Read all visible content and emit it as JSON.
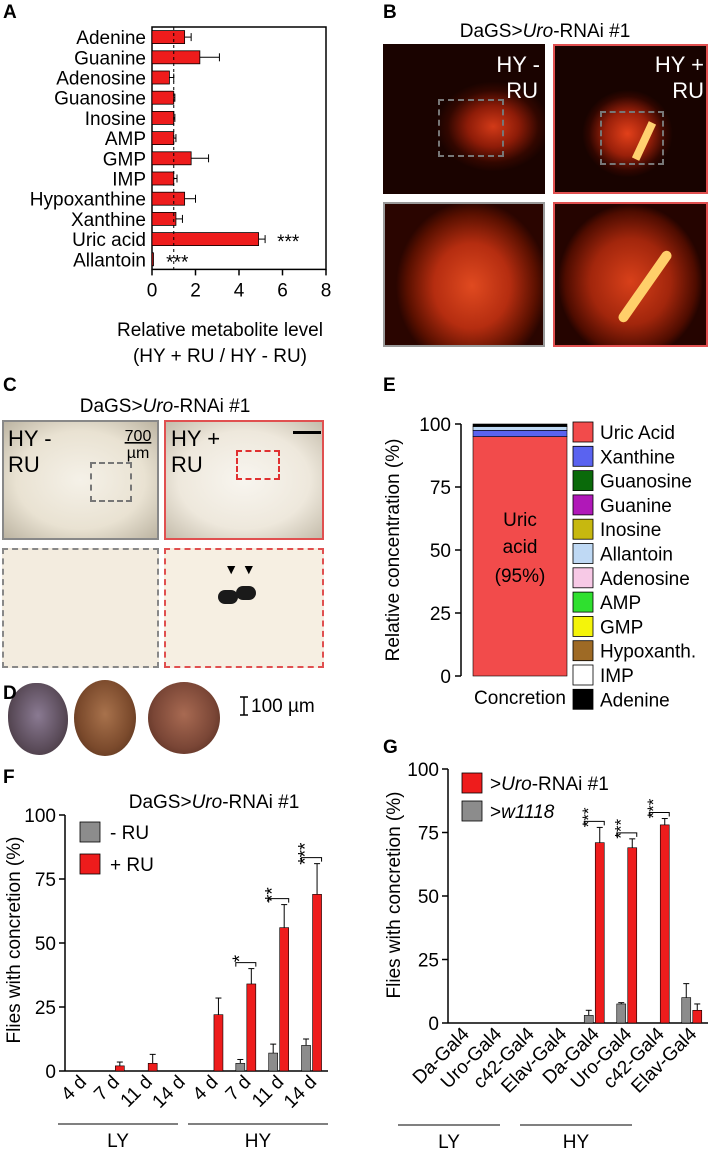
{
  "panel_letters": [
    "A",
    "B",
    "C",
    "D",
    "E",
    "F",
    "G"
  ],
  "panel_b": {
    "title_prefix": "DaGS>",
    "title_gene": "Uro",
    "title_suffix": "-RNAi #1",
    "left_label_line1": "HY -",
    "left_label_line2": "RU",
    "right_label_line1": "HY +",
    "right_label_line2": "RU"
  },
  "panel_c": {
    "title_prefix": "DaGS>",
    "title_gene": "Uro",
    "title_suffix": "-RNAi #1",
    "left_label_line1": "HY -",
    "left_label_line2": "RU",
    "right_label_line1": "HY +",
    "right_label_line2": "RU",
    "scale_line1": "700",
    "scale_line2": "µm",
    "arrows": "▼ ▼"
  },
  "panel_d": {
    "scale_label": "100 µm"
  },
  "chart_data": [
    {
      "panel": "A",
      "type": "bar",
      "orientation": "horizontal",
      "categories": [
        "Adenine",
        "Guanine",
        "Adenosine",
        "Guanosine",
        "Inosine",
        "AMP",
        "GMP",
        "IMP",
        "Hypoxanthine",
        "Xanthine",
        "Uric acid",
        "Allantoin"
      ],
      "values": [
        1.5,
        2.2,
        0.8,
        1.0,
        1.0,
        1.0,
        1.8,
        1.0,
        1.5,
        1.1,
        4.9,
        0.05
      ],
      "errors": [
        0.3,
        0.9,
        0.2,
        0.05,
        0.05,
        0.1,
        0.8,
        0.15,
        0.5,
        0.3,
        0.3,
        0.02
      ],
      "significance": [
        "",
        "",
        "",
        "",
        "",
        "",
        "",
        "",
        "",
        "",
        "***",
        "***"
      ],
      "xlim": [
        0,
        8
      ],
      "xticks": [
        "0",
        "2",
        "4",
        "6",
        "8"
      ],
      "reference_line": 1,
      "xlabel_line1": "Relative metabolite level",
      "xlabel_line2": "(HY + RU / HY - RU)",
      "bar_color": "#ee1c1c"
    },
    {
      "panel": "E",
      "type": "bar",
      "stacked": true,
      "categories": [
        "Concretion"
      ],
      "series": [
        {
          "name": "Uric Acid",
          "value": 95,
          "color": "#f24b4b"
        },
        {
          "name": "Xanthine",
          "value": 2.5,
          "color": "#5a63f0"
        },
        {
          "name": "Guanosine",
          "value": 0,
          "color": "#0a6a0a"
        },
        {
          "name": "Guanine",
          "value": 0,
          "color": "#b018b8"
        },
        {
          "name": "Inosine",
          "value": 0,
          "color": "#c7b80f"
        },
        {
          "name": "Allantoin",
          "value": 1.5,
          "color": "#bfd9f4"
        },
        {
          "name": "Adenosine",
          "value": 0,
          "color": "#f7c9e6"
        },
        {
          "name": "AMP",
          "value": 0,
          "color": "#2fe02f"
        },
        {
          "name": "GMP",
          "value": 0,
          "color": "#f4f40a"
        },
        {
          "name": "Hypoxanth.",
          "value": 0,
          "color": "#9e6a25"
        },
        {
          "name": "IMP",
          "value": 0,
          "color": "#ffffff"
        },
        {
          "name": "Adenine",
          "value": 1,
          "color": "#000000"
        }
      ],
      "ylim": [
        0,
        100
      ],
      "yticks": [
        "0",
        "25",
        "50",
        "75",
        "100"
      ],
      "ylabel": "Relative concentration (%)",
      "inner_label_line1": "Uric",
      "inner_label_line2": "acid",
      "inner_label_line3": "(95%)"
    },
    {
      "panel": "F",
      "type": "bar",
      "title_prefix": "DaGS>",
      "title_gene": "Uro",
      "title_suffix": "-RNAi #1",
      "categories": [
        "4 d",
        "7 d",
        "11 d",
        "14 d",
        "4 d",
        "7 d",
        "11 d",
        "14 d"
      ],
      "groups": [
        "LY",
        "HY"
      ],
      "series": [
        {
          "name": "- RU",
          "color": "#8c8c8c",
          "values": [
            0,
            0,
            0,
            0,
            0,
            3,
            7,
            10
          ],
          "errors": [
            0,
            0,
            0,
            0,
            0,
            1.5,
            3.5,
            2.5
          ]
        },
        {
          "name": "+ RU",
          "color": "#ee1c1c",
          "values": [
            0,
            2,
            3,
            0,
            22,
            34,
            56,
            69
          ],
          "errors": [
            0,
            1.5,
            3.5,
            0,
            6.5,
            6,
            9,
            12
          ]
        }
      ],
      "significance": [
        "",
        "",
        "",
        "",
        "",
        "*",
        "**",
        "***"
      ],
      "ylim": [
        0,
        100
      ],
      "yticks": [
        "0",
        "25",
        "50",
        "75",
        "100"
      ],
      "ylabel": "Flies with concretion (%)"
    },
    {
      "panel": "G",
      "type": "bar",
      "categories": [
        "Da-Gal4",
        "Uro-Gal4",
        "c42-Gal4",
        "Elav-Gal4",
        "Da-Gal4",
        "Uro-Gal4",
        "c42-Gal4",
        "Elav-Gal4"
      ],
      "groups": [
        "LY",
        "HY"
      ],
      "series": [
        {
          "name_prefix": ">",
          "name_gene": "Uro",
          "name_suffix": "-RNAi #1",
          "color": "#ee1c1c",
          "values": [
            0,
            0,
            0,
            0,
            71,
            69,
            78,
            5
          ],
          "errors": [
            0,
            0,
            0,
            0,
            6,
            3.5,
            2.5,
            2.5
          ]
        },
        {
          "name_prefix": ">",
          "name_gene": "w1118",
          "name_suffix": "",
          "color": "#8c8c8c",
          "values": [
            0,
            0,
            0,
            0,
            3,
            7.5,
            0,
            10
          ],
          "errors": [
            0,
            0,
            0,
            0,
            2,
            0.5,
            0,
            5.5
          ]
        }
      ],
      "significance": [
        "",
        "",
        "",
        "",
        "***",
        "***",
        "***",
        ""
      ],
      "ylim": [
        0,
        100
      ],
      "yticks": [
        "0",
        "25",
        "50",
        "75",
        "100"
      ],
      "ylabel": "Flies with concretion (%)"
    }
  ]
}
